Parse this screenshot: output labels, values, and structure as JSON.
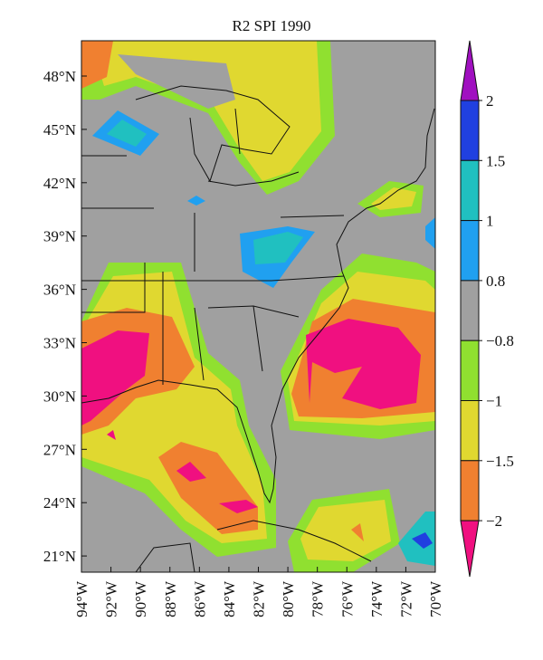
{
  "title": "R2 SPI 1990",
  "lat_labels": [
    "48°N",
    "45°N",
    "42°N",
    "39°N",
    "36°N",
    "33°N",
    "30°N",
    "27°N",
    "24°N",
    "21°N"
  ],
  "lon_labels": [
    "94°W",
    "92°W",
    "90°W",
    "88°W",
    "86°W",
    "84°W",
    "82°W",
    "80°W",
    "78°W",
    "76°W",
    "74°W",
    "72°W",
    "70°W"
  ],
  "colorbar": {
    "levels": [
      2,
      1.5,
      1,
      0.8,
      {
        "value": -0.8,
        "label": "−0.8"
      },
      {
        "value": -1,
        "label": "−1"
      },
      {
        "value": -1.5,
        "label": "−1.5"
      },
      {
        "value": -2,
        "label": "−2"
      }
    ],
    "colors": [
      "#a010c0",
      "#2040e0",
      "#20c0c0",
      "#20a0f0",
      "#a0a0a0",
      "#90e030",
      "#e0d830",
      "#f08030",
      "#f01080"
    ]
  }
}
